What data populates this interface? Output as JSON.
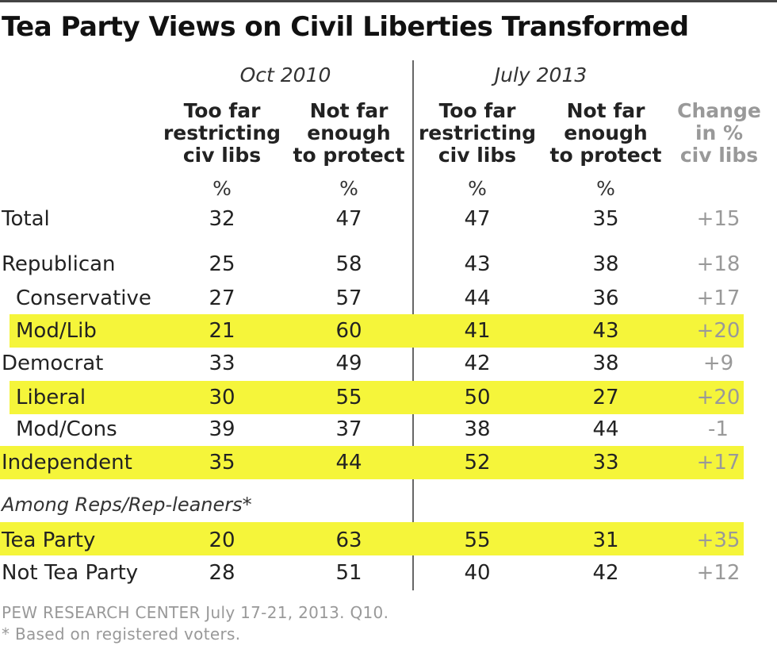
{
  "colors": {
    "highlight": "#f5f53a",
    "change_text": "#999999",
    "text": "#222222"
  },
  "chart_data": {
    "type": "table",
    "title": "Tea Party Views on Civil Liberties Transformed",
    "periods": [
      "Oct 2010",
      "July 2013"
    ],
    "columns": [
      {
        "lines": [
          "Too far",
          "restricting",
          "civ libs"
        ],
        "unit": "%"
      },
      {
        "lines": [
          "Not far",
          "enough",
          "to protect"
        ],
        "unit": "%"
      },
      {
        "lines": [
          "Too far",
          "restricting",
          "civ libs"
        ],
        "unit": "%"
      },
      {
        "lines": [
          "Not far",
          "enough",
          "to protect"
        ],
        "unit": "%"
      },
      {
        "lines": [
          "Change",
          "in %",
          "civ libs"
        ],
        "unit": ""
      }
    ],
    "section_label": "Among Reps/Rep-leaners*",
    "rows": [
      {
        "label": "Total",
        "values": [
          "32",
          "47",
          "47",
          "35",
          "+15"
        ],
        "highlight": false
      },
      {
        "label": "Republican",
        "values": [
          "25",
          "58",
          "43",
          "38",
          "+18"
        ],
        "highlight": false
      },
      {
        "label": "Conservative",
        "values": [
          "27",
          "57",
          "44",
          "36",
          "+17"
        ],
        "highlight": false
      },
      {
        "label": "Mod/Lib",
        "values": [
          "21",
          "60",
          "41",
          "43",
          "+20"
        ],
        "highlight": true
      },
      {
        "label": "Democrat",
        "values": [
          "33",
          "49",
          "42",
          "38",
          "+9"
        ],
        "highlight": false
      },
      {
        "label": "Liberal",
        "values": [
          "30",
          "55",
          "50",
          "27",
          "+20"
        ],
        "highlight": true
      },
      {
        "label": "Mod/Cons",
        "values": [
          "39",
          "37",
          "38",
          "44",
          "-1"
        ],
        "highlight": false
      },
      {
        "label": "Independent",
        "values": [
          "35",
          "44",
          "52",
          "33",
          "+17"
        ],
        "highlight": true
      },
      {
        "label": "Tea Party",
        "values": [
          "20",
          "63",
          "55",
          "31",
          "+35"
        ],
        "highlight": true
      },
      {
        "label": "Not Tea Party",
        "values": [
          "28",
          "51",
          "40",
          "42",
          "+12"
        ],
        "highlight": false
      }
    ],
    "source": "PEW RESEARCH CENTER July 17-21, 2013. Q10.",
    "note": "* Based on registered voters."
  }
}
